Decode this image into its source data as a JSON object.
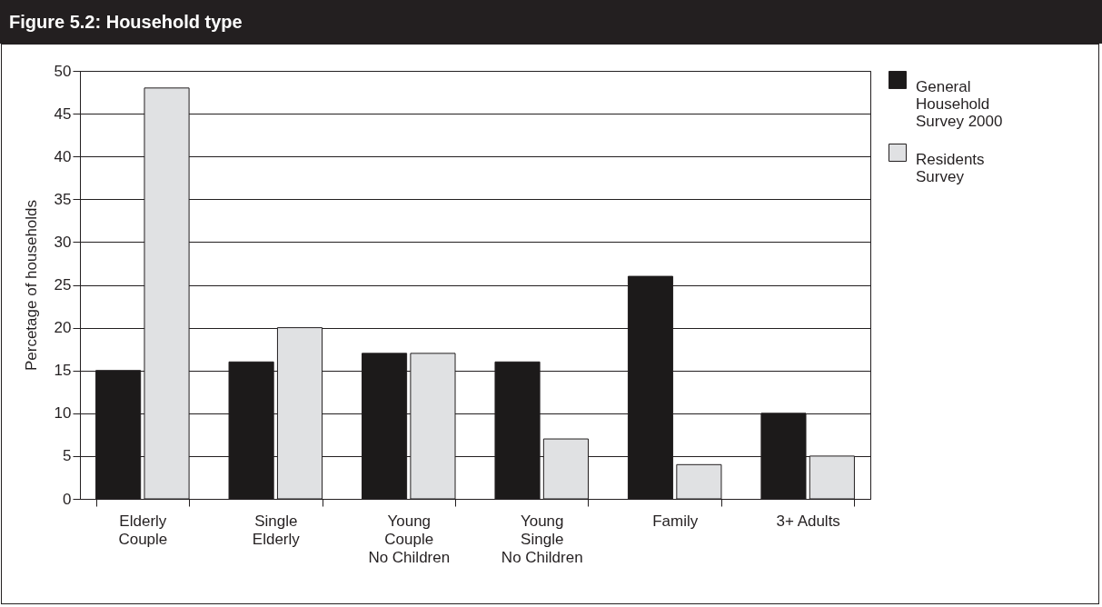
{
  "chart_data": {
    "type": "bar",
    "title": "Figure 5.2: Household type",
    "ylabel": "Percetage of households",
    "categories": [
      "Elderly Couple",
      "Single Elderly",
      "Young Couple No Children",
      "Young Single No Children",
      "Family",
      "3+ Adults"
    ],
    "series": [
      {
        "name": "General Household Survey 2000",
        "color": "#1c1a1a",
        "values": [
          15,
          16,
          17,
          16,
          26,
          10
        ]
      },
      {
        "name": "Residents Survey",
        "color": "#e0e1e3",
        "values": [
          48,
          20,
          17,
          7,
          4,
          5
        ]
      }
    ],
    "ylim": [
      0,
      50
    ],
    "yticks": [
      0,
      5,
      10,
      15,
      20,
      25,
      30,
      35,
      40,
      45,
      50
    ],
    "grid": "y",
    "legend": "right"
  }
}
